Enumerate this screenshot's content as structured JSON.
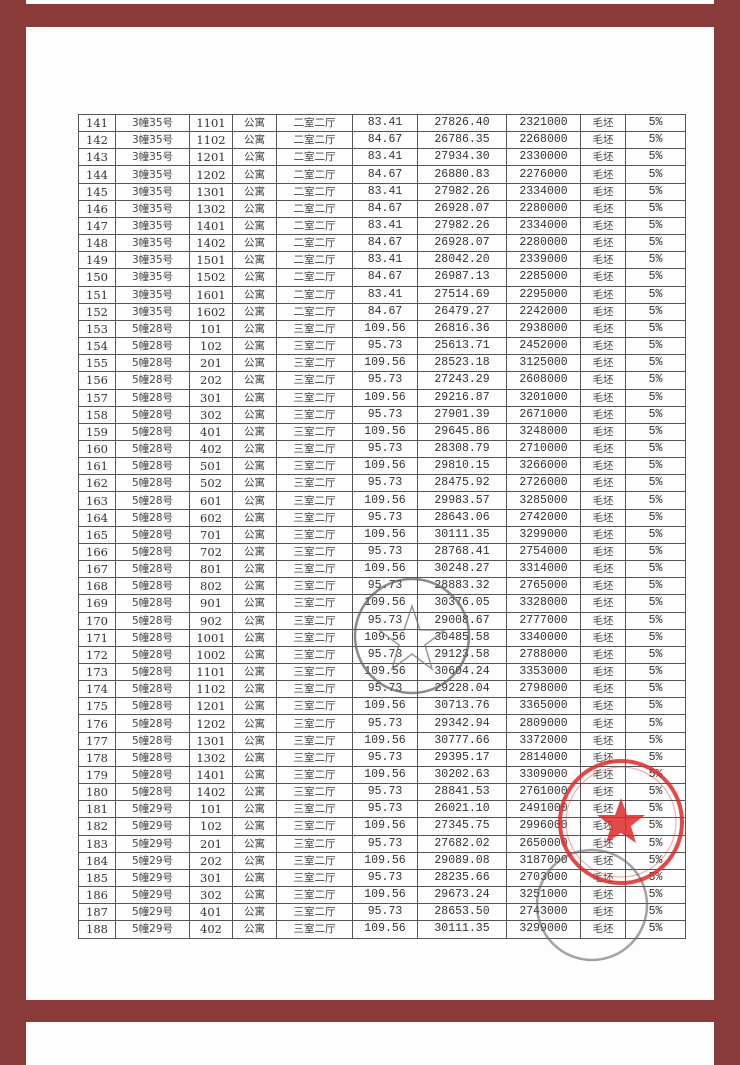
{
  "colors": {
    "frame": "#8a3b39",
    "stamp_red": "#e02a2a",
    "stamp_gray": "#666666"
  },
  "rows": [
    [
      "141",
      "3幢35号",
      "1101",
      "公寓",
      "二室二厅",
      "83.41",
      "27826.40",
      "2321000",
      "毛坯",
      "5%"
    ],
    [
      "142",
      "3幢35号",
      "1102",
      "公寓",
      "二室二厅",
      "84.67",
      "26786.35",
      "2268000",
      "毛坯",
      "5%"
    ],
    [
      "143",
      "3幢35号",
      "1201",
      "公寓",
      "二室二厅",
      "83.41",
      "27934.30",
      "2330000",
      "毛坯",
      "5%"
    ],
    [
      "144",
      "3幢35号",
      "1202",
      "公寓",
      "二室二厅",
      "84.67",
      "26880.83",
      "2276000",
      "毛坯",
      "5%"
    ],
    [
      "145",
      "3幢35号",
      "1301",
      "公寓",
      "二室二厅",
      "83.41",
      "27982.26",
      "2334000",
      "毛坯",
      "5%"
    ],
    [
      "146",
      "3幢35号",
      "1302",
      "公寓",
      "二室二厅",
      "84.67",
      "26928.07",
      "2280000",
      "毛坯",
      "5%"
    ],
    [
      "147",
      "3幢35号",
      "1401",
      "公寓",
      "二室二厅",
      "83.41",
      "27982.26",
      "2334000",
      "毛坯",
      "5%"
    ],
    [
      "148",
      "3幢35号",
      "1402",
      "公寓",
      "二室二厅",
      "84.67",
      "26928.07",
      "2280000",
      "毛坯",
      "5%"
    ],
    [
      "149",
      "3幢35号",
      "1501",
      "公寓",
      "二室二厅",
      "83.41",
      "28042.20",
      "2339000",
      "毛坯",
      "5%"
    ],
    [
      "150",
      "3幢35号",
      "1502",
      "公寓",
      "二室二厅",
      "84.67",
      "26987.13",
      "2285000",
      "毛坯",
      "5%"
    ],
    [
      "151",
      "3幢35号",
      "1601",
      "公寓",
      "二室二厅",
      "83.41",
      "27514.69",
      "2295000",
      "毛坯",
      "5%"
    ],
    [
      "152",
      "3幢35号",
      "1602",
      "公寓",
      "二室二厅",
      "84.67",
      "26479.27",
      "2242000",
      "毛坯",
      "5%"
    ],
    [
      "153",
      "5幢28号",
      "101",
      "公寓",
      "三室二厅",
      "109.56",
      "26816.36",
      "2938000",
      "毛坯",
      "5%"
    ],
    [
      "154",
      "5幢28号",
      "102",
      "公寓",
      "三室二厅",
      "95.73",
      "25613.71",
      "2452000",
      "毛坯",
      "5%"
    ],
    [
      "155",
      "5幢28号",
      "201",
      "公寓",
      "三室二厅",
      "109.56",
      "28523.18",
      "3125000",
      "毛坯",
      "5%"
    ],
    [
      "156",
      "5幢28号",
      "202",
      "公寓",
      "三室二厅",
      "95.73",
      "27243.29",
      "2608000",
      "毛坯",
      "5%"
    ],
    [
      "157",
      "5幢28号",
      "301",
      "公寓",
      "三室二厅",
      "109.56",
      "29216.87",
      "3201000",
      "毛坯",
      "5%"
    ],
    [
      "158",
      "5幢28号",
      "302",
      "公寓",
      "三室二厅",
      "95.73",
      "27901.39",
      "2671000",
      "毛坯",
      "5%"
    ],
    [
      "159",
      "5幢28号",
      "401",
      "公寓",
      "三室二厅",
      "109.56",
      "29645.86",
      "3248000",
      "毛坯",
      "5%"
    ],
    [
      "160",
      "5幢28号",
      "402",
      "公寓",
      "三室二厅",
      "95.73",
      "28308.79",
      "2710000",
      "毛坯",
      "5%"
    ],
    [
      "161",
      "5幢28号",
      "501",
      "公寓",
      "三室二厅",
      "109.56",
      "29810.15",
      "3266000",
      "毛坯",
      "5%"
    ],
    [
      "162",
      "5幢28号",
      "502",
      "公寓",
      "三室二厅",
      "95.73",
      "28475.92",
      "2726000",
      "毛坯",
      "5%"
    ],
    [
      "163",
      "5幢28号",
      "601",
      "公寓",
      "三室二厅",
      "109.56",
      "29983.57",
      "3285000",
      "毛坯",
      "5%"
    ],
    [
      "164",
      "5幢28号",
      "602",
      "公寓",
      "三室二厅",
      "95.73",
      "28643.06",
      "2742000",
      "毛坯",
      "5%"
    ],
    [
      "165",
      "5幢28号",
      "701",
      "公寓",
      "三室二厅",
      "109.56",
      "30111.35",
      "3299000",
      "毛坯",
      "5%"
    ],
    [
      "166",
      "5幢28号",
      "702",
      "公寓",
      "三室二厅",
      "95.73",
      "28768.41",
      "2754000",
      "毛坯",
      "5%"
    ],
    [
      "167",
      "5幢28号",
      "801",
      "公寓",
      "三室二厅",
      "109.56",
      "30248.27",
      "3314000",
      "毛坯",
      "5%"
    ],
    [
      "168",
      "5幢28号",
      "802",
      "公寓",
      "三室二厅",
      "95.73",
      "28883.32",
      "2765000",
      "毛坯",
      "5%"
    ],
    [
      "169",
      "5幢28号",
      "901",
      "公寓",
      "三室二厅",
      "109.56",
      "30376.05",
      "3328000",
      "毛坯",
      "5%"
    ],
    [
      "170",
      "5幢28号",
      "902",
      "公寓",
      "三室二厅",
      "95.73",
      "29008.67",
      "2777000",
      "毛坯",
      "5%"
    ],
    [
      "171",
      "5幢28号",
      "1001",
      "公寓",
      "三室二厅",
      "109.56",
      "30485.58",
      "3340000",
      "毛坯",
      "5%"
    ],
    [
      "172",
      "5幢28号",
      "1002",
      "公寓",
      "三室二厅",
      "95.73",
      "29123.58",
      "2788000",
      "毛坯",
      "5%"
    ],
    [
      "173",
      "5幢28号",
      "1101",
      "公寓",
      "三室二厅",
      "109.56",
      "30604.24",
      "3353000",
      "毛坯",
      "5%"
    ],
    [
      "174",
      "5幢28号",
      "1102",
      "公寓",
      "三室二厅",
      "95.73",
      "29228.04",
      "2798000",
      "毛坯",
      "5%"
    ],
    [
      "175",
      "5幢28号",
      "1201",
      "公寓",
      "三室二厅",
      "109.56",
      "30713.76",
      "3365000",
      "毛坯",
      "5%"
    ],
    [
      "176",
      "5幢28号",
      "1202",
      "公寓",
      "三室二厅",
      "95.73",
      "29342.94",
      "2809000",
      "毛坯",
      "5%"
    ],
    [
      "177",
      "5幢28号",
      "1301",
      "公寓",
      "三室二厅",
      "109.56",
      "30777.66",
      "3372000",
      "毛坯",
      "5%"
    ],
    [
      "178",
      "5幢28号",
      "1302",
      "公寓",
      "三室二厅",
      "95.73",
      "29395.17",
      "2814000",
      "毛坯",
      "5%"
    ],
    [
      "179",
      "5幢28号",
      "1401",
      "公寓",
      "三室二厅",
      "109.56",
      "30202.63",
      "3309000",
      "毛坯",
      "5%"
    ],
    [
      "180",
      "5幢28号",
      "1402",
      "公寓",
      "三室二厅",
      "95.73",
      "28841.53",
      "2761000",
      "毛坯",
      "5%"
    ],
    [
      "181",
      "5幢29号",
      "101",
      "公寓",
      "三室二厅",
      "95.73",
      "26021.10",
      "2491000",
      "毛坯",
      "5%"
    ],
    [
      "182",
      "5幢29号",
      "102",
      "公寓",
      "三室二厅",
      "109.56",
      "27345.75",
      "2996000",
      "毛坯",
      "5%"
    ],
    [
      "183",
      "5幢29号",
      "201",
      "公寓",
      "三室二厅",
      "95.73",
      "27682.02",
      "2650000",
      "毛坯",
      "5%"
    ],
    [
      "184",
      "5幢29号",
      "202",
      "公寓",
      "三室二厅",
      "109.56",
      "29089.08",
      "3187000",
      "毛坯",
      "5%"
    ],
    [
      "185",
      "5幢29号",
      "301",
      "公寓",
      "三室二厅",
      "95.73",
      "28235.66",
      "2703000",
      "毛坯",
      "5%"
    ],
    [
      "186",
      "5幢29号",
      "302",
      "公寓",
      "三室二厅",
      "109.56",
      "29673.24",
      "3251000",
      "毛坯",
      "5%"
    ],
    [
      "187",
      "5幢29号",
      "401",
      "公寓",
      "三室二厅",
      "95.73",
      "28653.50",
      "2743000",
      "毛坯",
      "5%"
    ],
    [
      "188",
      "5幢29号",
      "402",
      "公寓",
      "三室二厅",
      "109.56",
      "30111.35",
      "3299000",
      "毛坯",
      "5%"
    ]
  ]
}
